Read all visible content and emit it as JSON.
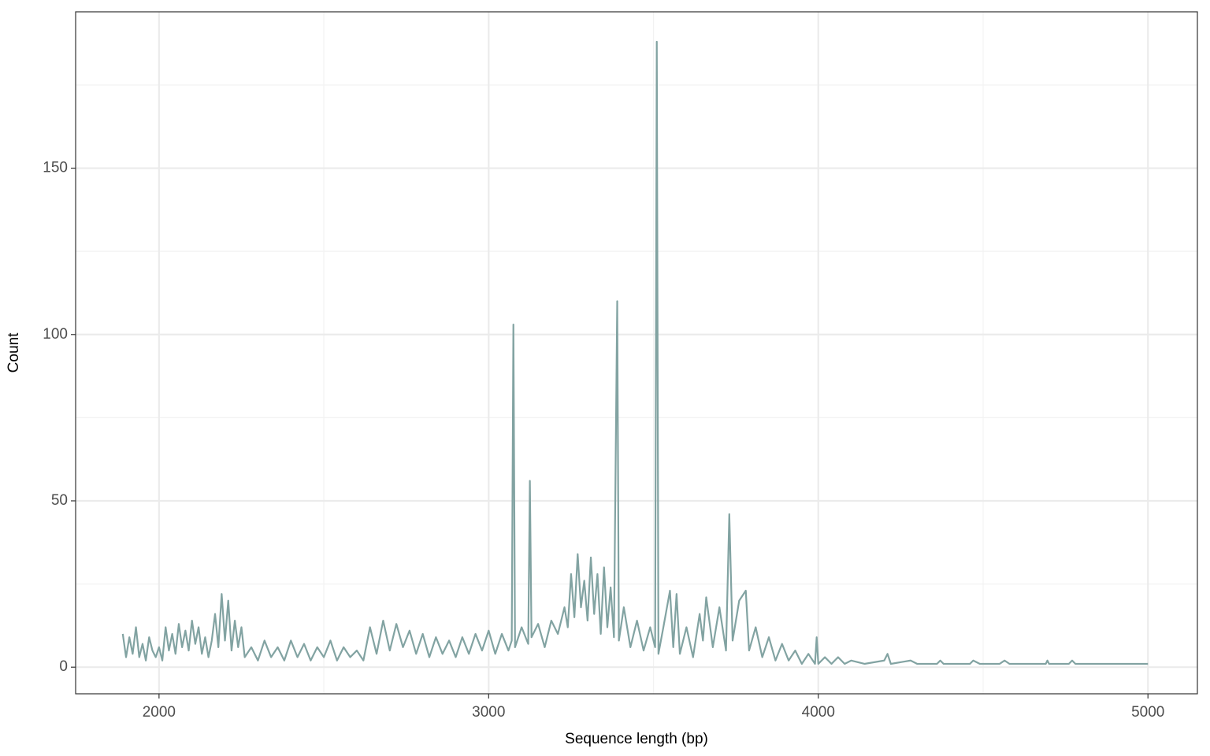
{
  "chart_data": {
    "type": "line",
    "x_label": "Sequence length (bp)",
    "y_label": "Count",
    "x": [
      1890,
      1900,
      1910,
      1920,
      1930,
      1940,
      1950,
      1960,
      1970,
      1980,
      1990,
      2000,
      2010,
      2020,
      2030,
      2040,
      2050,
      2060,
      2070,
      2080,
      2090,
      2100,
      2110,
      2120,
      2130,
      2140,
      2150,
      2160,
      2170,
      2180,
      2190,
      2200,
      2210,
      2220,
      2230,
      2240,
      2250,
      2260,
      2280,
      2300,
      2320,
      2340,
      2360,
      2380,
      2400,
      2420,
      2440,
      2460,
      2480,
      2500,
      2520,
      2540,
      2560,
      2580,
      2600,
      2620,
      2640,
      2660,
      2680,
      2700,
      2720,
      2740,
      2760,
      2780,
      2800,
      2820,
      2840,
      2860,
      2880,
      2900,
      2920,
      2940,
      2960,
      2980,
      3000,
      3020,
      3040,
      3060,
      3070,
      3075,
      3080,
      3100,
      3120,
      3125,
      3130,
      3150,
      3170,
      3190,
      3210,
      3230,
      3240,
      3250,
      3260,
      3270,
      3280,
      3290,
      3300,
      3310,
      3320,
      3330,
      3340,
      3350,
      3360,
      3370,
      3380,
      3390,
      3395,
      3410,
      3430,
      3450,
      3470,
      3490,
      3505,
      3510,
      3515,
      3530,
      3550,
      3560,
      3570,
      3580,
      3600,
      3620,
      3640,
      3650,
      3660,
      3680,
      3700,
      3720,
      3730,
      3740,
      3760,
      3780,
      3790,
      3810,
      3830,
      3850,
      3870,
      3890,
      3910,
      3930,
      3950,
      3970,
      3990,
      3995,
      4000,
      4020,
      4040,
      4060,
      4080,
      4100,
      4140,
      4200,
      4210,
      4220,
      4280,
      4300,
      4360,
      4370,
      4380,
      4460,
      4470,
      4490,
      4550,
      4565,
      4580,
      4690,
      4695,
      4700,
      4760,
      4770,
      4780,
      5000
    ],
    "series": [
      {
        "name": "Count",
        "color": "#82a3a2",
        "values": [
          10,
          3,
          9,
          4,
          12,
          3,
          7,
          2,
          9,
          5,
          3,
          6,
          2,
          12,
          5,
          10,
          4,
          13,
          6,
          11,
          5,
          14,
          7,
          12,
          4,
          9,
          3,
          8,
          16,
          6,
          22,
          8,
          20,
          5,
          14,
          6,
          12,
          3,
          6,
          2,
          8,
          3,
          6,
          2,
          8,
          3,
          7,
          2,
          6,
          3,
          8,
          2,
          6,
          3,
          5,
          2,
          12,
          4,
          14,
          5,
          13,
          6,
          11,
          4,
          10,
          3,
          9,
          4,
          8,
          3,
          9,
          4,
          10,
          5,
          11,
          4,
          10,
          5,
          8,
          103,
          6,
          12,
          7,
          56,
          9,
          13,
          6,
          14,
          10,
          18,
          12,
          28,
          15,
          34,
          18,
          26,
          14,
          33,
          16,
          28,
          10,
          30,
          12,
          24,
          9,
          110,
          8,
          18,
          6,
          14,
          5,
          12,
          6,
          188,
          4,
          12,
          23,
          6,
          22,
          4,
          12,
          3,
          16,
          8,
          21,
          6,
          18,
          5,
          46,
          8,
          20,
          23,
          5,
          12,
          3,
          9,
          2,
          7,
          2,
          5,
          1,
          4,
          1,
          9,
          1,
          3,
          1,
          3,
          1,
          2,
          1,
          2,
          4,
          1,
          2,
          1,
          1,
          2,
          1,
          1,
          2,
          1,
          1,
          2,
          1,
          1,
          2,
          1,
          1,
          2,
          1,
          1
        ]
      }
    ],
    "xlim": [
      1747,
      5150
    ],
    "ylim": [
      -8,
      197
    ],
    "xticks": [
      2000,
      3000,
      4000,
      5000
    ],
    "yticks": [
      0,
      50,
      100,
      150
    ],
    "x_minor_grid": [
      2500,
      3500,
      4500
    ],
    "y_minor_grid": [
      25,
      75,
      125,
      175
    ],
    "grid": true
  }
}
